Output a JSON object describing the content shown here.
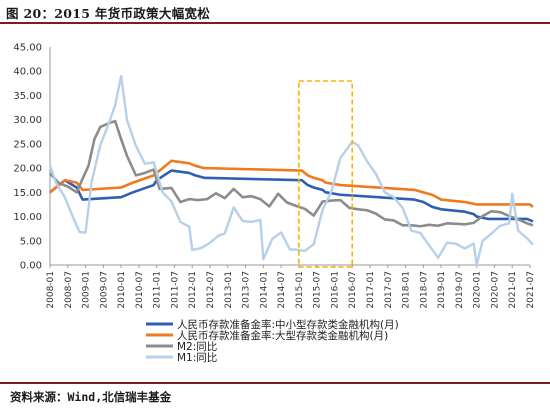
{
  "header": {
    "title": "图 20：2015 年货币政策大幅宽松"
  },
  "footer": {
    "source": "资料来源：Wind,北信瑞丰基金"
  },
  "chart_data": {
    "type": "line",
    "title": "",
    "xlabel": "",
    "ylabel": "",
    "ylim": [
      0,
      45
    ],
    "yticks": [
      "0.00",
      "5.00",
      "10.00",
      "15.00",
      "20.00",
      "25.00",
      "30.00",
      "35.00",
      "40.00",
      "45.00"
    ],
    "xticks": [
      "2008-01",
      "2008-07",
      "2009-01",
      "2009-07",
      "2010-01",
      "2010-07",
      "2011-01",
      "2011-07",
      "2012-01",
      "2012-07",
      "2013-01",
      "2013-07",
      "2014-01",
      "2014-07",
      "2015-01",
      "2015-07",
      "2016-01",
      "2016-07",
      "2017-01",
      "2017-07",
      "2018-01",
      "2018-07",
      "2019-01",
      "2019-07",
      "2020-01",
      "2020-07",
      "2021-01",
      "2021-07"
    ],
    "grid": false,
    "legend_position": "bottom",
    "highlight": {
      "x_start": "2015-01",
      "x_end": "2016-07",
      "color": "#f5b400",
      "style": "dashed"
    },
    "series": [
      {
        "name": "人民币存款准备金率:中小型存款类金融机构(月)",
        "color": "#2f5eb3",
        "points": [
          [
            "2008-01",
            15.0
          ],
          [
            "2008-06",
            17.5
          ],
          [
            "2008-10",
            16.0
          ],
          [
            "2008-12",
            13.5
          ],
          [
            "2010-01",
            14.0
          ],
          [
            "2010-05",
            15.0
          ],
          [
            "2010-12",
            16.5
          ],
          [
            "2011-01",
            17.5
          ],
          [
            "2011-06",
            19.5
          ],
          [
            "2011-12",
            19.0
          ],
          [
            "2012-02",
            18.5
          ],
          [
            "2012-05",
            18.0
          ],
          [
            "2015-02",
            17.5
          ],
          [
            "2015-04",
            16.5
          ],
          [
            "2015-06",
            16.0
          ],
          [
            "2015-09",
            15.5
          ],
          [
            "2015-10",
            15.0
          ],
          [
            "2016-03",
            14.5
          ],
          [
            "2018-04",
            13.5
          ],
          [
            "2018-07",
            13.0
          ],
          [
            "2018-10",
            12.0
          ],
          [
            "2019-01",
            11.5
          ],
          [
            "2019-09",
            11.0
          ],
          [
            "2019-12",
            10.5
          ],
          [
            "2020-01",
            10.0
          ],
          [
            "2020-05",
            9.5
          ],
          [
            "2021-06",
            9.5
          ],
          [
            "2021-08",
            9.0
          ]
        ]
      },
      {
        "name": "人民币存款准备金率:大型存款类金融机构(月)",
        "color": "#f07a22",
        "points": [
          [
            "2008-01",
            15.0
          ],
          [
            "2008-06",
            17.5
          ],
          [
            "2008-10",
            17.0
          ],
          [
            "2008-12",
            15.5
          ],
          [
            "2010-01",
            16.0
          ],
          [
            "2010-05",
            17.0
          ],
          [
            "2010-12",
            18.5
          ],
          [
            "2011-01",
            19.0
          ],
          [
            "2011-06",
            21.5
          ],
          [
            "2011-12",
            21.0
          ],
          [
            "2012-02",
            20.5
          ],
          [
            "2012-05",
            20.0
          ],
          [
            "2015-02",
            19.5
          ],
          [
            "2015-04",
            18.5
          ],
          [
            "2015-06",
            18.0
          ],
          [
            "2015-09",
            17.5
          ],
          [
            "2015-10",
            17.0
          ],
          [
            "2016-03",
            16.5
          ],
          [
            "2018-04",
            15.5
          ],
          [
            "2018-07",
            15.0
          ],
          [
            "2018-10",
            14.5
          ],
          [
            "2019-01",
            13.5
          ],
          [
            "2019-09",
            13.0
          ],
          [
            "2020-01",
            12.5
          ],
          [
            "2021-07",
            12.5
          ],
          [
            "2021-08",
            12.0
          ]
        ]
      },
      {
        "name": "M2:同比",
        "color": "#8c8c8c",
        "points": [
          [
            "2008-01",
            18.9
          ],
          [
            "2008-04",
            16.9
          ],
          [
            "2008-07",
            16.2
          ],
          [
            "2008-10",
            15.0
          ],
          [
            "2008-12",
            17.8
          ],
          [
            "2009-02",
            20.5
          ],
          [
            "2009-04",
            26.0
          ],
          [
            "2009-06",
            28.5
          ],
          [
            "2009-09",
            29.3
          ],
          [
            "2009-11",
            29.7
          ],
          [
            "2010-01",
            26.0
          ],
          [
            "2010-03",
            22.5
          ],
          [
            "2010-06",
            18.5
          ],
          [
            "2010-09",
            19.0
          ],
          [
            "2010-12",
            19.7
          ],
          [
            "2011-02",
            15.7
          ],
          [
            "2011-06",
            15.9
          ],
          [
            "2011-09",
            13.0
          ],
          [
            "2011-12",
            13.6
          ],
          [
            "2012-03",
            13.4
          ],
          [
            "2012-06",
            13.6
          ],
          [
            "2012-09",
            14.8
          ],
          [
            "2012-12",
            13.8
          ],
          [
            "2013-03",
            15.7
          ],
          [
            "2013-06",
            14.0
          ],
          [
            "2013-09",
            14.2
          ],
          [
            "2013-12",
            13.6
          ],
          [
            "2014-03",
            12.1
          ],
          [
            "2014-06",
            14.7
          ],
          [
            "2014-09",
            12.9
          ],
          [
            "2014-12",
            12.2
          ],
          [
            "2015-03",
            11.6
          ],
          [
            "2015-06",
            10.2
          ],
          [
            "2015-09",
            13.1
          ],
          [
            "2015-12",
            13.3
          ],
          [
            "2016-03",
            13.4
          ],
          [
            "2016-06",
            11.8
          ],
          [
            "2016-09",
            11.5
          ],
          [
            "2016-12",
            11.3
          ],
          [
            "2017-03",
            10.6
          ],
          [
            "2017-06",
            9.4
          ],
          [
            "2017-09",
            9.2
          ],
          [
            "2017-12",
            8.2
          ],
          [
            "2018-03",
            8.2
          ],
          [
            "2018-06",
            8.0
          ],
          [
            "2018-09",
            8.3
          ],
          [
            "2018-12",
            8.1
          ],
          [
            "2019-03",
            8.6
          ],
          [
            "2019-06",
            8.5
          ],
          [
            "2019-09",
            8.4
          ],
          [
            "2019-12",
            8.7
          ],
          [
            "2020-03",
            10.1
          ],
          [
            "2020-06",
            11.1
          ],
          [
            "2020-09",
            10.9
          ],
          [
            "2020-12",
            10.1
          ],
          [
            "2021-03",
            9.4
          ],
          [
            "2021-06",
            8.6
          ],
          [
            "2021-08",
            8.2
          ]
        ]
      },
      {
        "name": "M1:同比",
        "color": "#b5d0e8",
        "points": [
          [
            "2008-01",
            20.5
          ],
          [
            "2008-03",
            17.0
          ],
          [
            "2008-06",
            14.0
          ],
          [
            "2008-09",
            9.5
          ],
          [
            "2008-11",
            6.8
          ],
          [
            "2009-01",
            6.7
          ],
          [
            "2009-03",
            17.0
          ],
          [
            "2009-06",
            24.8
          ],
          [
            "2009-09",
            29.5
          ],
          [
            "2009-11",
            33.0
          ],
          [
            "2010-01",
            39.0
          ],
          [
            "2010-03",
            29.9
          ],
          [
            "2010-06",
            24.6
          ],
          [
            "2010-09",
            20.9
          ],
          [
            "2010-12",
            21.2
          ],
          [
            "2011-03",
            15.0
          ],
          [
            "2011-06",
            13.1
          ],
          [
            "2011-09",
            8.9
          ],
          [
            "2011-12",
            7.9
          ],
          [
            "2012-01",
            3.1
          ],
          [
            "2012-04",
            3.5
          ],
          [
            "2012-07",
            4.6
          ],
          [
            "2012-10",
            6.1
          ],
          [
            "2012-12",
            6.5
          ],
          [
            "2013-03",
            11.9
          ],
          [
            "2013-06",
            9.1
          ],
          [
            "2013-09",
            8.9
          ],
          [
            "2013-12",
            9.3
          ],
          [
            "2014-01",
            1.2
          ],
          [
            "2014-04",
            5.4
          ],
          [
            "2014-07",
            6.7
          ],
          [
            "2014-10",
            3.2
          ],
          [
            "2014-12",
            3.2
          ],
          [
            "2015-03",
            2.9
          ],
          [
            "2015-06",
            4.3
          ],
          [
            "2015-09",
            11.4
          ],
          [
            "2015-12",
            15.2
          ],
          [
            "2016-03",
            22.1
          ],
          [
            "2016-06",
            24.6
          ],
          [
            "2016-07",
            25.4
          ],
          [
            "2016-09",
            24.7
          ],
          [
            "2016-12",
            21.4
          ],
          [
            "2017-03",
            18.8
          ],
          [
            "2017-06",
            15.0
          ],
          [
            "2017-09",
            14.0
          ],
          [
            "2017-12",
            11.8
          ],
          [
            "2018-03",
            7.1
          ],
          [
            "2018-06",
            6.6
          ],
          [
            "2018-09",
            4.0
          ],
          [
            "2018-12",
            1.5
          ],
          [
            "2019-03",
            4.6
          ],
          [
            "2019-06",
            4.4
          ],
          [
            "2019-09",
            3.4
          ],
          [
            "2019-12",
            4.4
          ],
          [
            "2020-01",
            0.0
          ],
          [
            "2020-03",
            5.0
          ],
          [
            "2020-06",
            6.5
          ],
          [
            "2020-09",
            8.1
          ],
          [
            "2020-12",
            8.6
          ],
          [
            "2021-01",
            14.7
          ],
          [
            "2021-03",
            7.1
          ],
          [
            "2021-06",
            5.5
          ],
          [
            "2021-08",
            4.2
          ]
        ]
      }
    ]
  }
}
